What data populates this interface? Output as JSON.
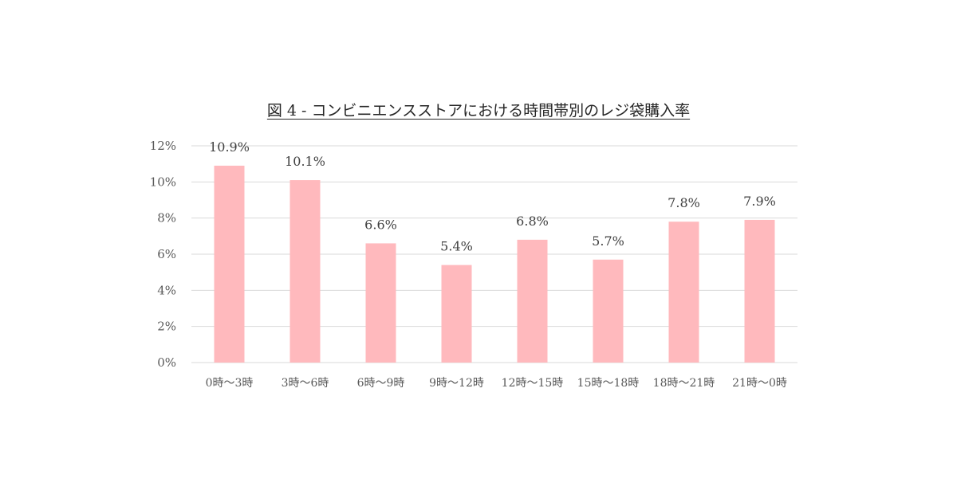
{
  "chart_data": {
    "type": "bar",
    "title": "図 4 - コンビニエンスストアにおける時間帯別のレジ袋購入率",
    "categories": [
      "0時～3時",
      "3時～6時",
      "6時～9時",
      "9時～12時",
      "12時～15時",
      "15時～18時",
      "18時～21時",
      "21時～0時"
    ],
    "values": [
      10.9,
      10.1,
      6.6,
      5.4,
      6.8,
      5.7,
      7.8,
      7.9
    ],
    "data_labels": [
      "10.9%",
      "10.1%",
      "6.6%",
      "5.4%",
      "6.8%",
      "5.7%",
      "7.8%",
      "7.9%"
    ],
    "y_ticks": [
      "0%",
      "2%",
      "4%",
      "6%",
      "8%",
      "10%",
      "12%"
    ],
    "ylim": [
      0,
      12
    ],
    "y_unit": "%",
    "grid": true,
    "bar_color": "#ffb9bd",
    "grid_color": "#d9d9d9"
  }
}
